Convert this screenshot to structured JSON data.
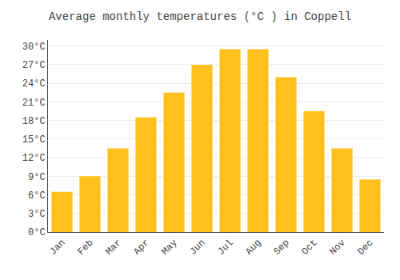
{
  "chart_data": {
    "type": "bar",
    "title": "Average monthly temperatures (°C ) in Coppell",
    "categories": [
      "Jan",
      "Feb",
      "Mar",
      "Apr",
      "May",
      "Jun",
      "Jul",
      "Aug",
      "Sep",
      "Oct",
      "Nov",
      "Dec"
    ],
    "values": [
      6.5,
      9.0,
      13.5,
      18.5,
      22.5,
      27.0,
      29.5,
      29.5,
      25.0,
      19.5,
      13.5,
      8.5
    ],
    "color": "#FFC020",
    "ylim": [
      0,
      31
    ],
    "yticks": [
      {
        "value": 0,
        "label": "0°C"
      },
      {
        "value": 3,
        "label": "3°C"
      },
      {
        "value": 6,
        "label": "6°C"
      },
      {
        "value": 9,
        "label": "9°C"
      },
      {
        "value": 12,
        "label": "12°C"
      },
      {
        "value": 15,
        "label": "15°C"
      },
      {
        "value": 18,
        "label": "18°C"
      },
      {
        "value": 21,
        "label": "21°C"
      },
      {
        "value": 24,
        "label": "24°C"
      },
      {
        "value": 27,
        "label": "27°C"
      },
      {
        "value": 30,
        "label": "30°C"
      }
    ],
    "grid": true
  }
}
